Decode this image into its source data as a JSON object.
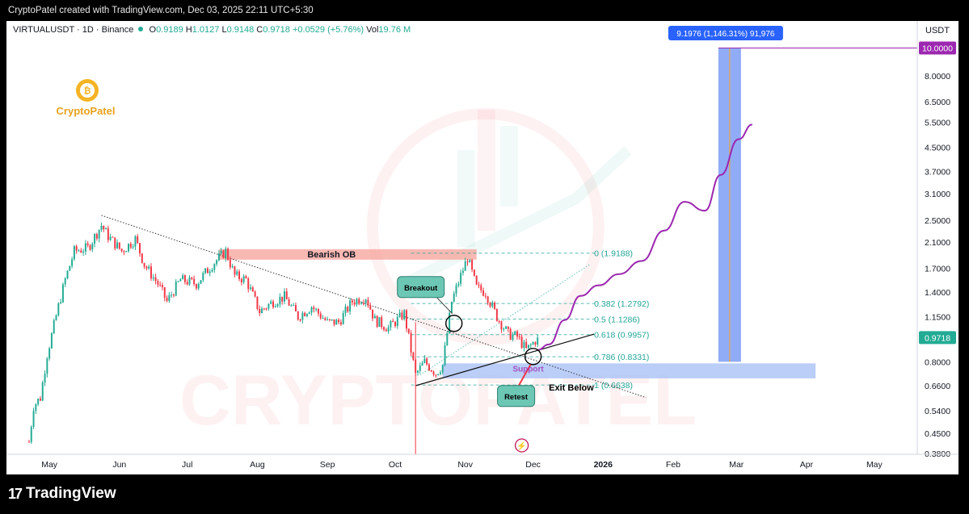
{
  "header": {
    "caption": "CryptoPatel created with TradingView.com, Dec 03, 2025 22:11 UTC+5:30"
  },
  "legend": {
    "symbol": "VIRTUALUSDT · 1D · Binance",
    "o_label": "O",
    "o": "0.9189",
    "h_label": "H",
    "h": "1.0127",
    "l_label": "L",
    "l": "0.9148",
    "c_label": "C",
    "c": "0.9718",
    "change": "+0.0529 (+5.76%)",
    "vol_label": "Vol",
    "vol": "19.76 M"
  },
  "footer": {
    "brand": "TradingView"
  },
  "colors": {
    "up": "#22ab94",
    "down": "#f23645",
    "accent": "#2962ff",
    "purple": "#9c27b0"
  },
  "chart_data": {
    "type": "candlestick",
    "currency": "USDT",
    "scale": "log",
    "ylim": [
      0.38,
      10.5
    ],
    "price_ticks": [
      "10.0000",
      "8.0000",
      "6.5000",
      "5.5000",
      "4.5000",
      "3.7000",
      "3.1000",
      "2.5000",
      "2.1000",
      "1.7000",
      "1.4000",
      "1.1500",
      "0.9718",
      "0.8000",
      "0.6600",
      "0.5400",
      "0.4500",
      "0.3800"
    ],
    "last_price": 0.9718,
    "target_price": 10.0,
    "time_ticks": [
      "May",
      "Jun",
      "Jul",
      "Aug",
      "Sep",
      "Oct",
      "Nov",
      "Dec",
      "2026",
      "Feb",
      "Mar",
      "Apr",
      "May"
    ],
    "price_path": [
      {
        "d": "2025-04-22",
        "p": 0.42
      },
      {
        "d": "2025-04-24",
        "p": 0.56
      },
      {
        "d": "2025-04-27",
        "p": 0.6
      },
      {
        "d": "2025-04-30",
        "p": 0.85
      },
      {
        "d": "2025-05-05",
        "p": 1.25
      },
      {
        "d": "2025-05-08",
        "p": 1.55
      },
      {
        "d": "2025-05-12",
        "p": 1.95
      },
      {
        "d": "2025-05-18",
        "p": 2.0
      },
      {
        "d": "2025-05-24",
        "p": 2.4
      },
      {
        "d": "2025-05-27",
        "p": 2.2
      },
      {
        "d": "2025-06-02",
        "p": 1.95
      },
      {
        "d": "2025-06-08",
        "p": 2.15
      },
      {
        "d": "2025-06-12",
        "p": 1.75
      },
      {
        "d": "2025-06-18",
        "p": 1.5
      },
      {
        "d": "2025-06-22",
        "p": 1.3
      },
      {
        "d": "2025-06-28",
        "p": 1.55
      },
      {
        "d": "2025-07-05",
        "p": 1.5
      },
      {
        "d": "2025-07-12",
        "p": 1.75
      },
      {
        "d": "2025-07-18",
        "p": 1.95
      },
      {
        "d": "2025-07-22",
        "p": 1.6
      },
      {
        "d": "2025-07-27",
        "p": 1.55
      },
      {
        "d": "2025-08-02",
        "p": 1.2
      },
      {
        "d": "2025-08-08",
        "p": 1.3
      },
      {
        "d": "2025-08-13",
        "p": 1.35
      },
      {
        "d": "2025-08-19",
        "p": 1.15
      },
      {
        "d": "2025-08-25",
        "p": 1.25
      },
      {
        "d": "2025-09-01",
        "p": 1.1
      },
      {
        "d": "2025-09-06",
        "p": 1.1
      },
      {
        "d": "2025-09-12",
        "p": 1.3
      },
      {
        "d": "2025-09-18",
        "p": 1.35
      },
      {
        "d": "2025-09-22",
        "p": 1.12
      },
      {
        "d": "2025-09-28",
        "p": 1.05
      },
      {
        "d": "2025-10-05",
        "p": 1.18
      },
      {
        "d": "2025-10-10",
        "p": 0.72
      },
      {
        "d": "2025-10-14",
        "p": 0.8
      },
      {
        "d": "2025-10-19",
        "p": 0.73
      },
      {
        "d": "2025-10-22",
        "p": 0.78
      },
      {
        "d": "2025-10-26",
        "p": 1.3
      },
      {
        "d": "2025-10-30",
        "p": 1.6
      },
      {
        "d": "2025-11-02",
        "p": 1.85
      },
      {
        "d": "2025-11-06",
        "p": 1.45
      },
      {
        "d": "2025-11-10",
        "p": 1.4
      },
      {
        "d": "2025-11-15",
        "p": 1.15
      },
      {
        "d": "2025-11-20",
        "p": 1.0
      },
      {
        "d": "2025-11-24",
        "p": 0.98
      },
      {
        "d": "2025-11-28",
        "p": 0.88
      },
      {
        "d": "2025-12-01",
        "p": 0.93
      },
      {
        "d": "2025-12-03",
        "p": 0.9718
      }
    ],
    "wick_low": {
      "d": "2025-10-10",
      "p": 0.38
    },
    "projection": [
      {
        "d": "2025-12-03",
        "p": 0.88
      },
      {
        "d": "2025-12-08",
        "p": 0.92
      },
      {
        "d": "2025-12-15",
        "p": 1.12
      },
      {
        "d": "2025-12-22",
        "p": 1.36
      },
      {
        "d": "2025-12-30",
        "p": 1.48
      },
      {
        "d": "2026-01-08",
        "p": 1.62
      },
      {
        "d": "2026-01-18",
        "p": 1.8
      },
      {
        "d": "2026-01-28",
        "p": 2.3
      },
      {
        "d": "2026-02-06",
        "p": 2.9
      },
      {
        "d": "2026-02-15",
        "p": 2.7
      },
      {
        "d": "2026-02-22",
        "p": 3.6
      },
      {
        "d": "2026-03-02",
        "p": 4.8
      },
      {
        "d": "2026-03-08",
        "p": 5.4
      }
    ],
    "fib_levels": [
      {
        "label": "0 (1.9188)",
        "p": 1.9188
      },
      {
        "label": "0.382 (1.2792)",
        "p": 1.2792
      },
      {
        "label": "0.5 (1.1286)",
        "p": 1.1286
      },
      {
        "label": "0.618 (0.9957)",
        "p": 0.9957
      },
      {
        "label": "0.786 (0.8331)",
        "p": 0.8331
      },
      {
        "label": "1 (0.6638)",
        "p": 0.6638
      }
    ],
    "zones": {
      "bearish_ob": {
        "label": "Bearish OB",
        "from": "2025-07-15",
        "to": "2025-11-06",
        "low": 1.82,
        "high": 1.98
      },
      "support": {
        "label": "Support",
        "from": "2025-10-22",
        "to": "2026-04-05",
        "low": 0.7,
        "high": 0.79
      },
      "target_bar": {
        "from": "2026-02-21",
        "to": "2026-03-03",
        "low": 0.8,
        "high": 10.0
      }
    },
    "measure_label": "9.1976 (1,146.31%) 91,976",
    "annotations": {
      "breakout": "Breakout",
      "retest": "Retest",
      "exit_below": "Exit Below",
      "watermark": "CRYPTOPATEL",
      "logo_text": "CryptoPatel"
    }
  }
}
